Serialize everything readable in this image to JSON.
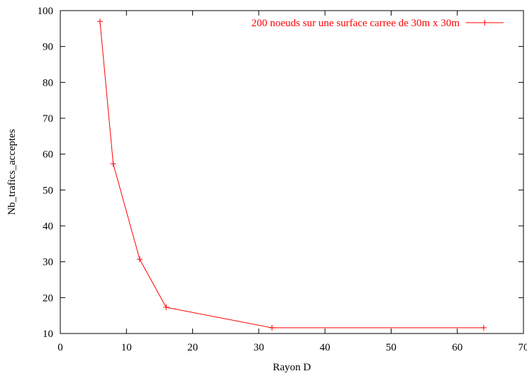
{
  "chart_data": {
    "type": "line",
    "title": "",
    "xlabel": "Rayon D",
    "ylabel": "Nb_trafics_acceptes",
    "xlim": [
      0,
      70
    ],
    "ylim": [
      10,
      100
    ],
    "xticks": [
      0,
      10,
      20,
      30,
      40,
      50,
      60,
      70
    ],
    "yticks": [
      10,
      20,
      30,
      40,
      50,
      60,
      70,
      80,
      90,
      100
    ],
    "grid": false,
    "legend_position": "top-right",
    "series": [
      {
        "name": "200 noeuds sur une surface carree de 30m x 30m",
        "color": "#ff0000",
        "marker": "plus",
        "x": [
          6,
          8,
          12,
          16,
          32,
          64
        ],
        "y": [
          97,
          57.3,
          30.7,
          17.3,
          11.6,
          11.6
        ]
      }
    ]
  }
}
